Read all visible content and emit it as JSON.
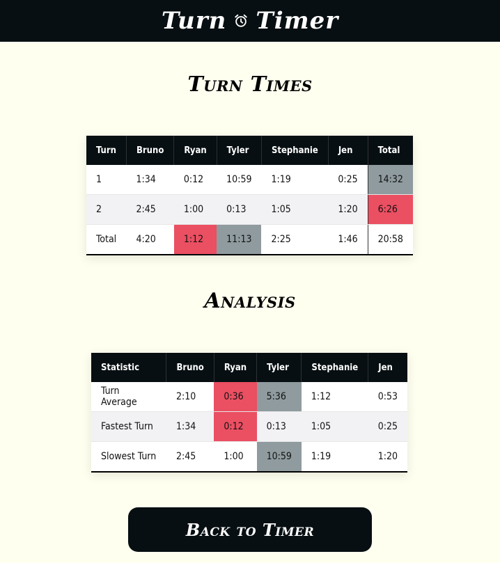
{
  "app": {
    "title_left": "Turn",
    "title_right": "Timer"
  },
  "turn_times": {
    "heading": "Turn Times",
    "columns": [
      "Turn",
      "Bruno",
      "Ryan",
      "Tyler",
      "Stephanie",
      "Jen",
      "Total"
    ],
    "rows": [
      [
        "1",
        "1:34",
        "0:12",
        "10:59",
        "1:19",
        "0:25",
        "14:32"
      ],
      [
        "2",
        "2:45",
        "1:00",
        "0:13",
        "1:05",
        "1:20",
        "6:26"
      ],
      [
        "Total",
        "4:20",
        "1:12",
        "11:13",
        "2:25",
        "1:46",
        "20:58"
      ]
    ],
    "highlights": [
      {
        "row": 0,
        "col": 6,
        "color": "#8f9b9f"
      },
      {
        "row": 1,
        "col": 6,
        "color": "#eb4f62"
      },
      {
        "row": 2,
        "col": 2,
        "color": "#eb4f62"
      },
      {
        "row": 2,
        "col": 3,
        "color": "#8f9b9f"
      }
    ]
  },
  "analysis": {
    "heading": "Analysis",
    "columns": [
      "Statistic",
      "Bruno",
      "Ryan",
      "Tyler",
      "Stephanie",
      "Jen"
    ],
    "rows": [
      [
        "Turn Average",
        "2:10",
        "0:36",
        "5:36",
        "1:12",
        "0:53"
      ],
      [
        "Fastest Turn",
        "1:34",
        "0:12",
        "0:13",
        "1:05",
        "0:25"
      ],
      [
        "Slowest Turn",
        "2:45",
        "1:00",
        "10:59",
        "1:19",
        "1:20"
      ]
    ],
    "highlights": [
      {
        "row": 0,
        "col": 2,
        "color": "#eb4f62"
      },
      {
        "row": 0,
        "col": 3,
        "color": "#8f9b9f"
      },
      {
        "row": 1,
        "col": 2,
        "color": "#eb4f62"
      },
      {
        "row": 2,
        "col": 3,
        "color": "#8f9b9f"
      }
    ]
  },
  "back_button": {
    "label": "Back to Timer"
  },
  "colors": {
    "background": "#fffff0",
    "dark": "#070f12",
    "highlight_red": "#eb4f62",
    "highlight_grey": "#8f9b9f"
  },
  "icons": {
    "logo_icon": "alarm-clock-icon"
  }
}
